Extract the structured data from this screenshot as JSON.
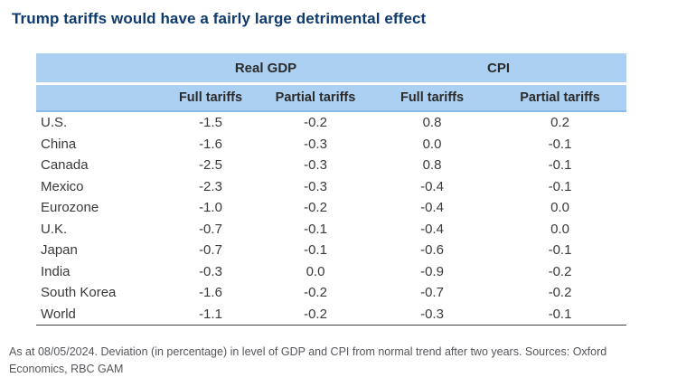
{
  "title": "Trump tariffs would have a fairly large detrimental effect",
  "colors": {
    "title_text": "#0e3a6e",
    "header_background": "#abd0f2",
    "header_divider": "#8bbce9",
    "body_text": "#3a3a3a",
    "bottom_rule": "#3d3d3d",
    "footnote_text": "#54565a"
  },
  "table": {
    "group_headers": [
      "Real GDP",
      "CPI"
    ],
    "col_headers": [
      "Full tariffs",
      "Partial tariffs",
      "Full tariffs",
      "Partial tariffs"
    ],
    "rows": [
      {
        "cells": [
          "U.S.",
          "-1.5",
          "-0.2",
          "0.8",
          "0.2"
        ]
      },
      {
        "cells": [
          "China",
          "-1.6",
          "-0.3",
          "0.0",
          "-0.1"
        ]
      },
      {
        "cells": [
          "Canada",
          "-2.5",
          "-0.3",
          "0.8",
          "-0.1"
        ]
      },
      {
        "cells": [
          "Mexico",
          "-2.3",
          "-0.3",
          "-0.4",
          "-0.1"
        ]
      },
      {
        "cells": [
          "Eurozone",
          "-1.0",
          "-0.2",
          "-0.4",
          "0.0"
        ]
      },
      {
        "cells": [
          "U.K.",
          "-0.7",
          "-0.1",
          "-0.4",
          "0.0"
        ]
      },
      {
        "cells": [
          "Japan",
          "-0.7",
          "-0.1",
          "-0.6",
          "-0.1"
        ]
      },
      {
        "cells": [
          "India",
          "-0.3",
          "0.0",
          "-0.9",
          "-0.2"
        ]
      },
      {
        "cells": [
          "South Korea",
          "-1.6",
          "-0.2",
          "-0.7",
          "-0.2"
        ]
      },
      {
        "cells": [
          "World",
          "-1.1",
          "-0.2",
          "-0.3",
          "-0.1"
        ]
      }
    ]
  },
  "footnote": "As at 08/05/2024. Deviation (in percentage) in level of GDP and CPI from normal trend after two years. Sources: Oxford Economics, RBC GAM",
  "chart_data": {
    "type": "table",
    "title": "Trump tariffs would have a fairly large detrimental effect",
    "column_groups": [
      "Real GDP",
      "CPI"
    ],
    "columns": [
      "Real GDP - Full tariffs",
      "Real GDP - Partial tariffs",
      "CPI - Full tariffs",
      "CPI - Partial tariffs"
    ],
    "categories": [
      "U.S.",
      "China",
      "Canada",
      "Mexico",
      "Eurozone",
      "U.K.",
      "Japan",
      "India",
      "South Korea",
      "World"
    ],
    "series": [
      {
        "name": "Real GDP - Full tariffs",
        "values": [
          -1.5,
          -1.6,
          -2.5,
          -2.3,
          -1.0,
          -0.7,
          -0.7,
          -0.3,
          -1.6,
          -1.1
        ]
      },
      {
        "name": "Real GDP - Partial tariffs",
        "values": [
          -0.2,
          -0.3,
          -0.3,
          -0.3,
          -0.2,
          -0.1,
          -0.1,
          0.0,
          -0.2,
          -0.2
        ]
      },
      {
        "name": "CPI - Full tariffs",
        "values": [
          0.8,
          0.0,
          0.8,
          -0.4,
          -0.4,
          -0.4,
          -0.6,
          -0.9,
          -0.7,
          -0.3
        ]
      },
      {
        "name": "CPI - Partial tariffs",
        "values": [
          0.2,
          -0.1,
          -0.1,
          -0.1,
          0.0,
          0.0,
          -0.1,
          -0.2,
          -0.2,
          -0.1
        ]
      }
    ],
    "units": "percentage deviation from normal trend after two years",
    "note": "As at 08/05/2024. Deviation (in percentage) in level of GDP and CPI from normal trend after two years. Sources: Oxford Economics, RBC GAM"
  }
}
